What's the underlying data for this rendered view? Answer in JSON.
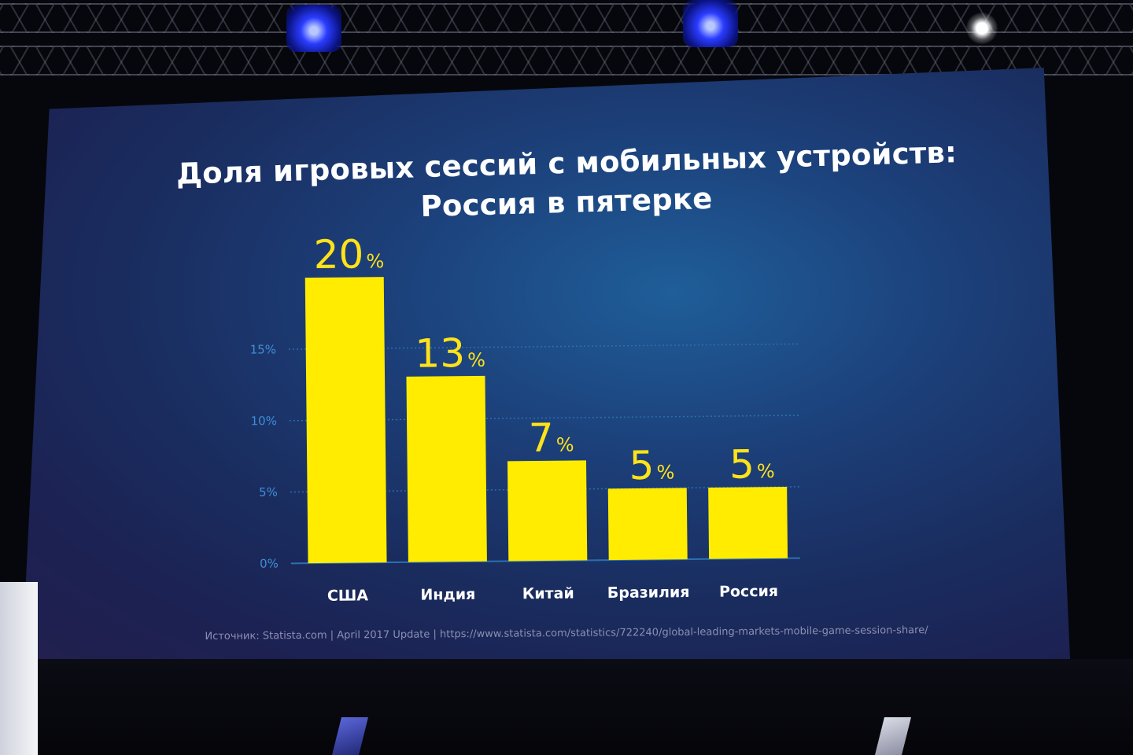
{
  "slide": {
    "title_line1": "Доля игровых сессий с мобильных устройств:",
    "title_line2": "Россия в пятерке",
    "source": "Источник: Statista.com | April 2017 Update | https://www.statista.com/statistics/722240/global-leading-markets-mobile-game-session-share/"
  },
  "colors": {
    "bar": "#ffec00",
    "value_label": "#ffe21a",
    "tick_label": "#3f8fd6",
    "gridline": "#2d6fb0",
    "screen": "#1c3f79"
  },
  "chart_data": {
    "type": "bar",
    "title": "Доля игровых сессий с мобильных устройств: Россия в пятерке",
    "categories": [
      "США",
      "Индия",
      "Китай",
      "Бразилия",
      "Россия"
    ],
    "values": [
      20,
      13,
      7,
      5,
      5
    ],
    "value_labels": [
      "20",
      "13",
      "7",
      "5",
      "5"
    ],
    "value_suffix": "%",
    "yticks": [
      "0%",
      "5%",
      "10%",
      "15%"
    ],
    "ytick_values": [
      0,
      5,
      10,
      15
    ],
    "ylim": [
      0,
      20
    ],
    "grid": true,
    "xlabel": "",
    "ylabel": ""
  }
}
